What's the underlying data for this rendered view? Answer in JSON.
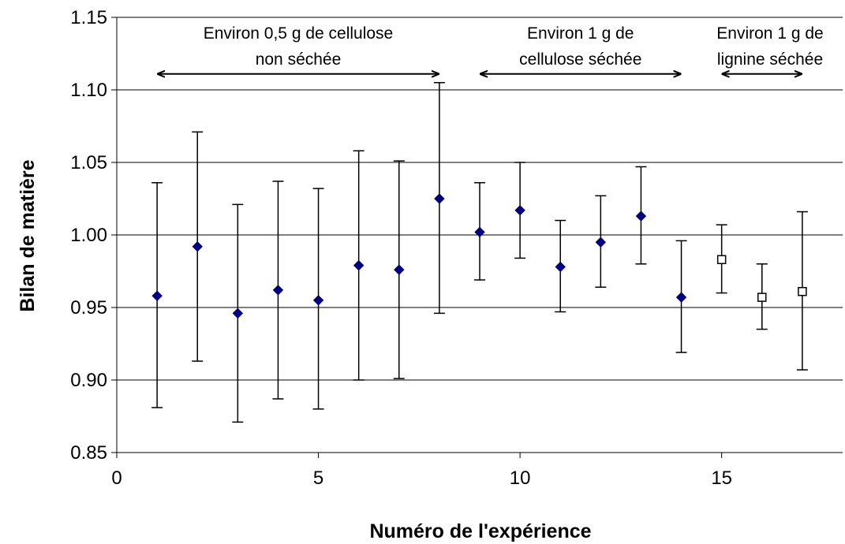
{
  "chart_data": {
    "type": "scatter",
    "xlabel": "Numéro de l'expérience",
    "ylabel": "Bilan de matière",
    "xlim": [
      0,
      18
    ],
    "ylim": [
      0.85,
      1.15
    ],
    "x_ticks": [
      "0",
      "5",
      "10",
      "15"
    ],
    "x_tick_values": [
      0,
      5,
      10,
      15
    ],
    "y_ticks": [
      "0.85",
      "0.90",
      "0.95",
      "1.00",
      "1.05",
      "1.10",
      "1.15"
    ],
    "y_tick_values": [
      0.85,
      0.9,
      0.95,
      1.0,
      1.05,
      1.1,
      1.15
    ],
    "grid": "horizontal",
    "series": [
      {
        "marker": "filled-diamond",
        "color": "#000080",
        "points": [
          {
            "x": 1,
            "y": 0.958,
            "err_low": 0.881,
            "err_high": 1.036
          },
          {
            "x": 2,
            "y": 0.992,
            "err_low": 0.913,
            "err_high": 1.071
          },
          {
            "x": 3,
            "y": 0.946,
            "err_low": 0.871,
            "err_high": 1.021
          },
          {
            "x": 4,
            "y": 0.962,
            "err_low": 0.887,
            "err_high": 1.037
          },
          {
            "x": 5,
            "y": 0.955,
            "err_low": 0.88,
            "err_high": 1.032
          },
          {
            "x": 6,
            "y": 0.979,
            "err_low": 0.9,
            "err_high": 1.058
          },
          {
            "x": 7,
            "y": 0.976,
            "err_low": 0.901,
            "err_high": 1.051
          },
          {
            "x": 8,
            "y": 1.025,
            "err_low": 0.946,
            "err_high": 1.105
          },
          {
            "x": 9,
            "y": 1.002,
            "err_low": 0.969,
            "err_high": 1.036
          },
          {
            "x": 10,
            "y": 1.017,
            "err_low": 0.984,
            "err_high": 1.05
          },
          {
            "x": 11,
            "y": 0.978,
            "err_low": 0.947,
            "err_high": 1.01
          },
          {
            "x": 12,
            "y": 0.995,
            "err_low": 0.964,
            "err_high": 1.027
          },
          {
            "x": 13,
            "y": 1.013,
            "err_low": 0.98,
            "err_high": 1.047
          },
          {
            "x": 14,
            "y": 0.957,
            "err_low": 0.919,
            "err_high": 0.996
          }
        ]
      },
      {
        "marker": "open-square",
        "color": "#000000",
        "points": [
          {
            "x": 15,
            "y": 0.983,
            "err_low": 0.96,
            "err_high": 1.007
          },
          {
            "x": 16,
            "y": 0.957,
            "err_low": 0.935,
            "err_high": 0.98
          },
          {
            "x": 17,
            "y": 0.961,
            "err_low": 0.907,
            "err_high": 1.016
          }
        ]
      }
    ],
    "annotations": [
      {
        "lines": [
          "Environ 0,5 g de cellulose",
          "non séchée"
        ],
        "x_from": 1,
        "x_to": 8,
        "x_text": 4.5,
        "y_arrow": 1.111
      },
      {
        "lines": [
          "Environ 1 g de",
          "cellulose séchée"
        ],
        "x_from": 9,
        "x_to": 14,
        "x_text": 11.5,
        "y_arrow": 1.111
      },
      {
        "lines": [
          "Environ 1 g de",
          "lignine séchée"
        ],
        "x_from": 15,
        "x_to": 17,
        "x_text": 16.2,
        "y_arrow": 1.111
      }
    ]
  }
}
